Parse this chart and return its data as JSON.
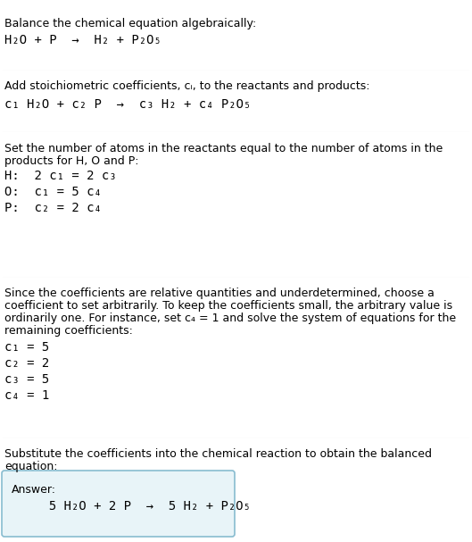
{
  "bg_color": "#ffffff",
  "text_color": "#000000",
  "answer_box_facecolor": "#e8f4f8",
  "answer_box_edgecolor": "#88bcd0",
  "divider_color": "#cccccc",
  "font_normal": "DejaVu Sans",
  "font_mono": "DejaVu Sans Mono",
  "fs_body": 9.0,
  "fs_eq": 10.0,
  "sections": [
    {
      "type": "title_eq",
      "title": "Balance the chemical equation algebraically:",
      "eq": "H₂O + P  →  H₂ + P₂O₅"
    },
    {
      "type": "divider"
    },
    {
      "type": "header_eq",
      "header": "Add stoichiometric coefficients, cᵢ, to the reactants and products:",
      "eq": "c₁ H₂O + c₂ P  →  c₃ H₂ + c₄ P₂O₅"
    },
    {
      "type": "divider"
    },
    {
      "type": "header_lines",
      "header": "Set the number of atoms in the reactants equal to the number of atoms in the\nproducts for H, O and P:",
      "lines": [
        "H:  2 c₁ = 2 c₃",
        "O:  c₁ = 5 c₄",
        "P:  c₂ = 2 c₄"
      ]
    },
    {
      "type": "divider"
    },
    {
      "type": "header_lines",
      "header": "Since the coefficients are relative quantities and underdetermined, choose a\ncoefficient to set arbitrarily. To keep the coefficients small, the arbitrary value is\nordinarily one. For instance, set c₄ = 1 and solve the system of equations for the\nremaining coefficients:",
      "lines": [
        "c₁ = 5",
        "c₂ = 2",
        "c₃ = 5",
        "c₄ = 1"
      ]
    },
    {
      "type": "divider"
    },
    {
      "type": "final",
      "header": "Substitute the coefficients into the chemical reaction to obtain the balanced\nequation:",
      "answer_label": "Answer:",
      "answer_eq": "     5 H₂O + 2 P  →  5 H₂ + P₂O₅"
    }
  ]
}
